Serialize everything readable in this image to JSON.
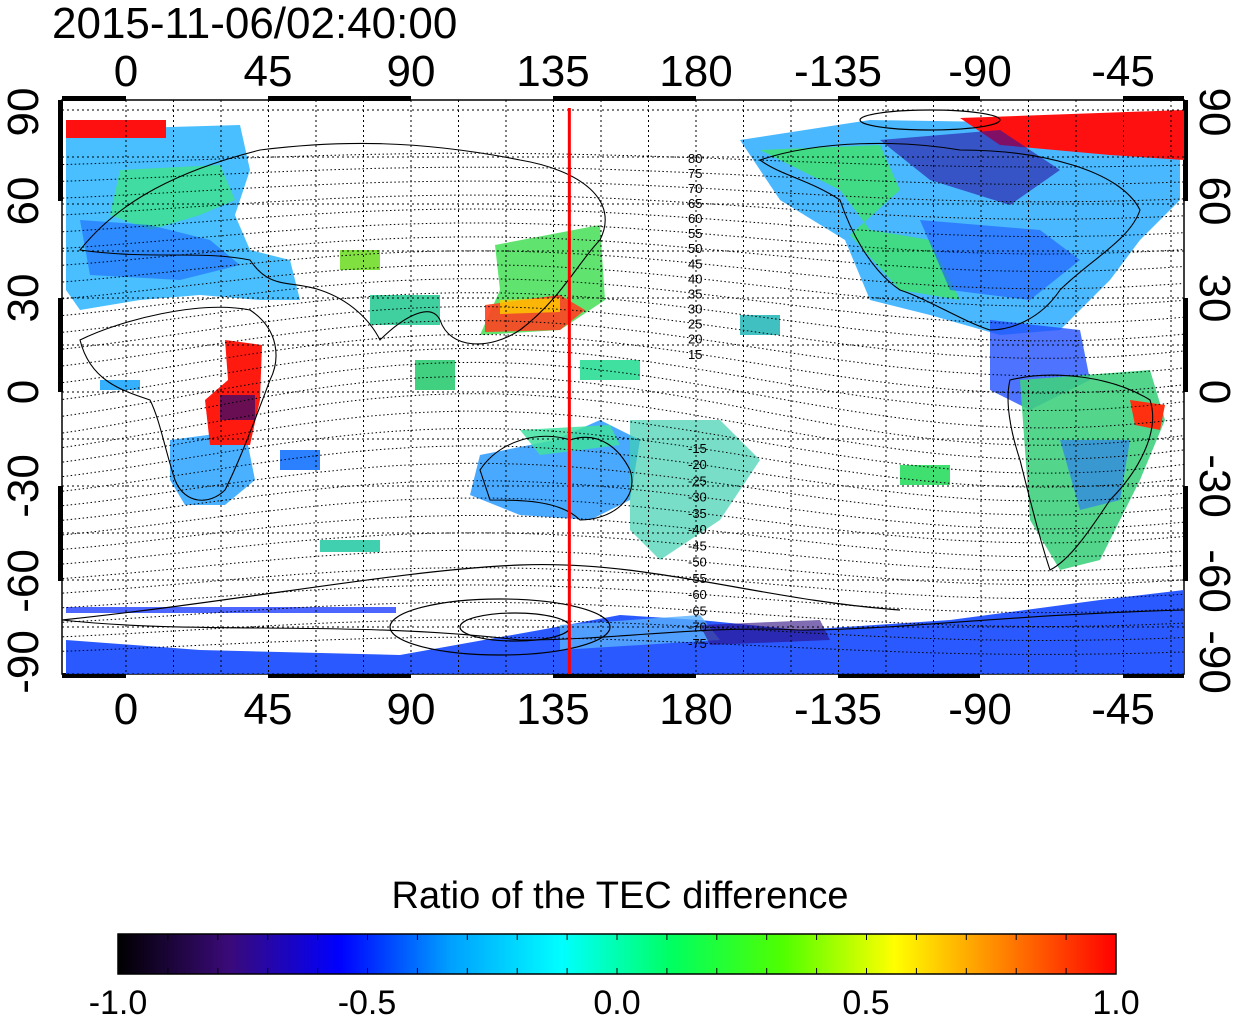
{
  "title": "2015-11-06/02:40:00",
  "map": {
    "lon_ticks": [
      "0",
      "45",
      "90",
      "135",
      "180",
      "-135",
      "-90",
      "-45"
    ],
    "lat_ticks": [
      "90",
      "60",
      "30",
      "0",
      "-30",
      "-60",
      "-90"
    ],
    "marker_longitude": 140,
    "marker_color": "#ff0000",
    "magnetic_contour_labels": [
      "80",
      "75",
      "70",
      "65",
      "60",
      "55",
      "50",
      "45",
      "40",
      "35",
      "30",
      "25",
      "20",
      "15",
      "-15",
      "-20",
      "-25",
      "-30",
      "-35",
      "-40",
      "-45",
      "-50",
      "-55",
      "-60",
      "-65",
      "-70",
      "-75"
    ]
  },
  "colorbar": {
    "title": "Ratio of the TEC difference",
    "ticks": [
      "-1.0",
      "-0.5",
      "0.0",
      "0.5",
      "1.0"
    ],
    "min": -1.0,
    "max": 1.0,
    "colors": [
      "#000000",
      "#3a0a78",
      "#0000ff",
      "#00a0ff",
      "#00ffff",
      "#00ff60",
      "#50ff00",
      "#ffff00",
      "#ff8000",
      "#ff0000"
    ]
  }
}
